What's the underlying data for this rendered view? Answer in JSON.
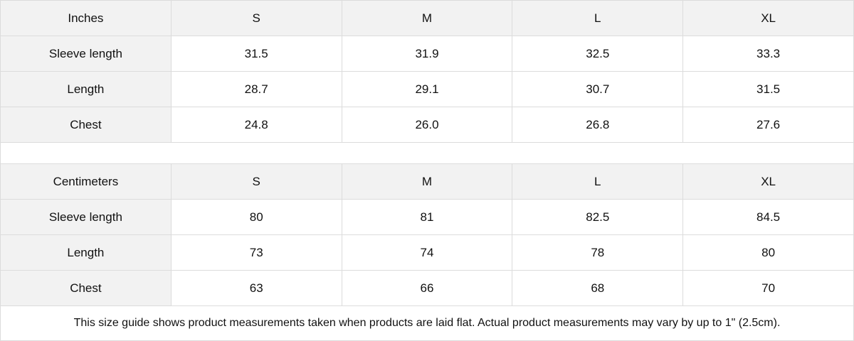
{
  "tables": [
    {
      "unit": "Inches",
      "sizes": [
        "S",
        "M",
        "L",
        "XL"
      ],
      "rows": [
        {
          "label": "Sleeve length",
          "values": [
            "31.5",
            "31.9",
            "32.5",
            "33.3"
          ]
        },
        {
          "label": "Length",
          "values": [
            "28.7",
            "29.1",
            "30.7",
            "31.5"
          ]
        },
        {
          "label": "Chest",
          "values": [
            "24.8",
            "26.0",
            "26.8",
            "27.6"
          ]
        }
      ]
    },
    {
      "unit": "Centimeters",
      "sizes": [
        "S",
        "M",
        "L",
        "XL"
      ],
      "rows": [
        {
          "label": "Sleeve length",
          "values": [
            "80",
            "81",
            "82.5",
            "84.5"
          ]
        },
        {
          "label": "Length",
          "values": [
            "73",
            "74",
            "78",
            "80"
          ]
        },
        {
          "label": "Chest",
          "values": [
            "63",
            "66",
            "68",
            "70"
          ]
        }
      ]
    }
  ],
  "note": "This size guide shows product measurements taken when products are laid flat.  Actual product measurements may vary by up to 1\" (2.5cm)."
}
